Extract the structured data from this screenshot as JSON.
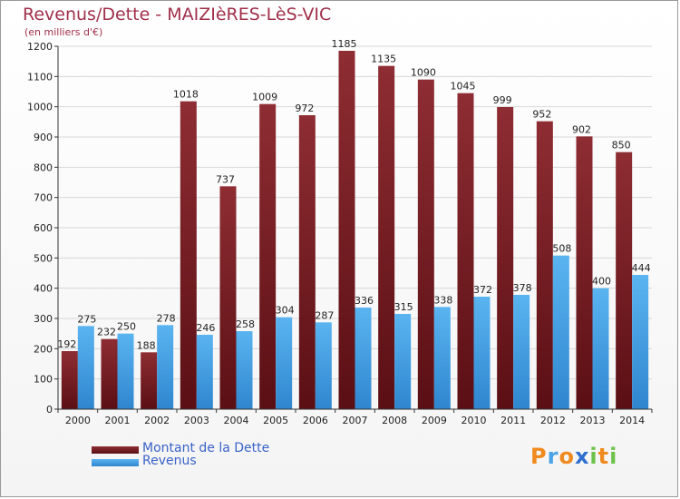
{
  "chart_data": {
    "type": "bar",
    "title": "Revenus/Dette - MAIZIèRES-LèS-VIC",
    "subtitle": "(en milliers d'€)",
    "categories": [
      "2000",
      "2001",
      "2002",
      "2003",
      "2004",
      "2005",
      "2006",
      "2007",
      "2008",
      "2009",
      "2010",
      "2011",
      "2012",
      "2013",
      "2014"
    ],
    "series": [
      {
        "name": "Montant de la Dette",
        "color": "#7a1a22",
        "values": [
          192,
          232,
          188,
          1018,
          737,
          1009,
          972,
          1185,
          1135,
          1090,
          1045,
          999,
          952,
          902,
          850
        ]
      },
      {
        "name": "Revenus",
        "color": "#4aa3e6",
        "values": [
          275,
          250,
          278,
          246,
          258,
          304,
          287,
          336,
          315,
          338,
          372,
          378,
          508,
          400,
          444
        ]
      }
    ],
    "ylim": [
      0,
      1200
    ],
    "yticks": [
      0,
      100,
      200,
      300,
      400,
      500,
      600,
      700,
      800,
      900,
      1000,
      1100,
      1200
    ],
    "grid": true,
    "legend_position": "bottom-left"
  },
  "logo": {
    "letters": [
      "P",
      "r",
      "o",
      "x",
      "i",
      "t",
      "i"
    ],
    "colors": [
      "#f08a1e",
      "#4aa3e6",
      "#f08a1e",
      "#2f6fd0",
      "#6cc24a",
      "#f08a1e",
      "#6cc24a"
    ]
  }
}
